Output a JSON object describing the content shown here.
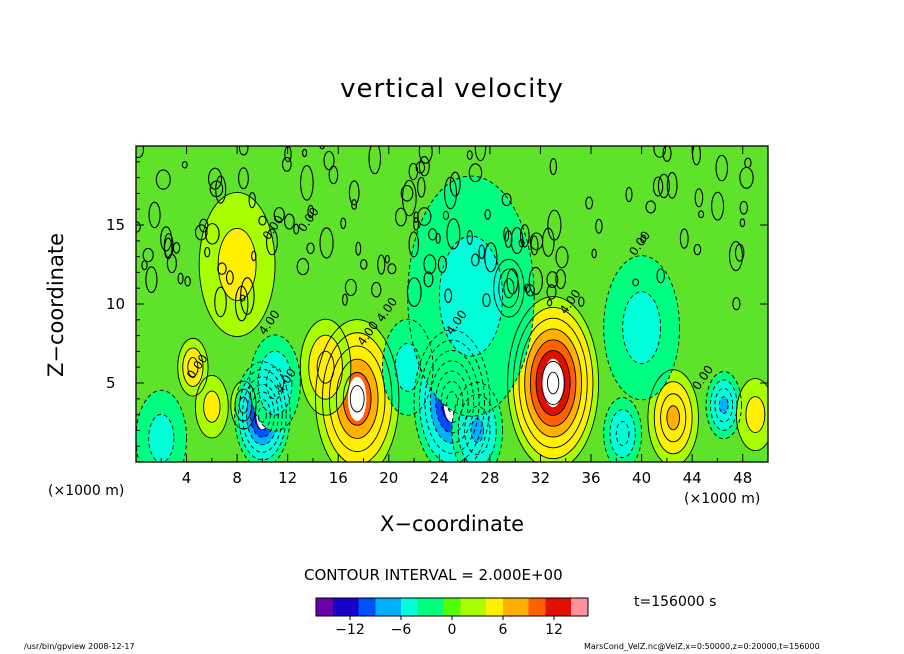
{
  "chart_data": {
    "type": "heatmap",
    "title": "vertical velocity",
    "xlabel": "X−coordinate",
    "ylabel": "Z−coordinate",
    "x_unit_left": "(×1000 m)",
    "x_unit_right": "(×1000 m)",
    "xlim": [
      0,
      50
    ],
    "ylim": [
      0,
      20
    ],
    "x_ticks": [
      "4",
      "8",
      "12",
      "16",
      "20",
      "24",
      "28",
      "32",
      "36",
      "40",
      "44",
      "48"
    ],
    "y_ticks": [
      "5",
      "10",
      "15"
    ],
    "contour_interval": "CONTOUR INTERVAL = 2.000E+00",
    "contour_labels": [
      "4.00",
      "4.00",
      "4.00",
      "4.00",
      "4.00",
      "4.00",
      "0.00",
      "0.00",
      "0.00",
      "0.00",
      "0.00"
    ],
    "colorbar": {
      "min": -16,
      "max": 16,
      "ticks": [
        "−12",
        "−6",
        "0",
        "6",
        "12"
      ],
      "colors": [
        "#6a00a8",
        "#1a00c8",
        "#0050ff",
        "#00b0ff",
        "#00ffd8",
        "#00ff80",
        "#50ff00",
        "#a8ff00",
        "#fff000",
        "#ffb000",
        "#ff6000",
        "#e01000",
        "#ff90a0"
      ]
    },
    "cells": [
      {
        "x": 4.5,
        "z": 6.0,
        "w": 1.2,
        "v": 6
      },
      {
        "x": 6.0,
        "z": 3.5,
        "w": 1.3,
        "v": 4
      },
      {
        "x": 8.5,
        "z": 3.6,
        "w": 1.0,
        "v": 6
      },
      {
        "x": 10.0,
        "z": 3.0,
        "w": 2.2,
        "v": -14
      },
      {
        "x": 11.0,
        "z": 5.0,
        "w": 2.0,
        "v": -6
      },
      {
        "x": 17.5,
        "z": 4.0,
        "w": 3.3,
        "v": 12
      },
      {
        "x": 15.0,
        "z": 6.0,
        "w": 2.0,
        "v": 6
      },
      {
        "x": 21.5,
        "z": 6.0,
        "w": 2.0,
        "v": -4
      },
      {
        "x": 25.0,
        "z": 3.8,
        "w": 3.0,
        "v": -14
      },
      {
        "x": 27.0,
        "z": 2.0,
        "w": 2.0,
        "v": -8
      },
      {
        "x": 33.0,
        "z": 5.0,
        "w": 3.6,
        "v": 16
      },
      {
        "x": 29.5,
        "z": 11.0,
        "w": 1.2,
        "v": 6
      },
      {
        "x": 26.5,
        "z": 10.5,
        "w": 5.0,
        "v": -3
      },
      {
        "x": 42.5,
        "z": 2.8,
        "w": 2.0,
        "v": 8
      },
      {
        "x": 46.5,
        "z": 3.6,
        "w": 1.4,
        "v": -8
      },
      {
        "x": 49.0,
        "z": 3.0,
        "w": 1.5,
        "v": 4
      },
      {
        "x": 2.0,
        "z": 1.5,
        "w": 2.0,
        "v": -4
      },
      {
        "x": 38.5,
        "z": 1.8,
        "w": 1.5,
        "v": -5
      },
      {
        "x": 8.0,
        "z": 12.5,
        "w": 3.0,
        "v": 3
      },
      {
        "x": 40.0,
        "z": 8.5,
        "w": 3.0,
        "v": -3
      }
    ],
    "grid": false
  },
  "time_label": "t=156000 s",
  "footer_left": "/usr/bin/gpview   2008-12-17",
  "footer_right": "MarsCond_VelZ.nc@VelZ,x=0:50000,z=0:20000,t=156000"
}
